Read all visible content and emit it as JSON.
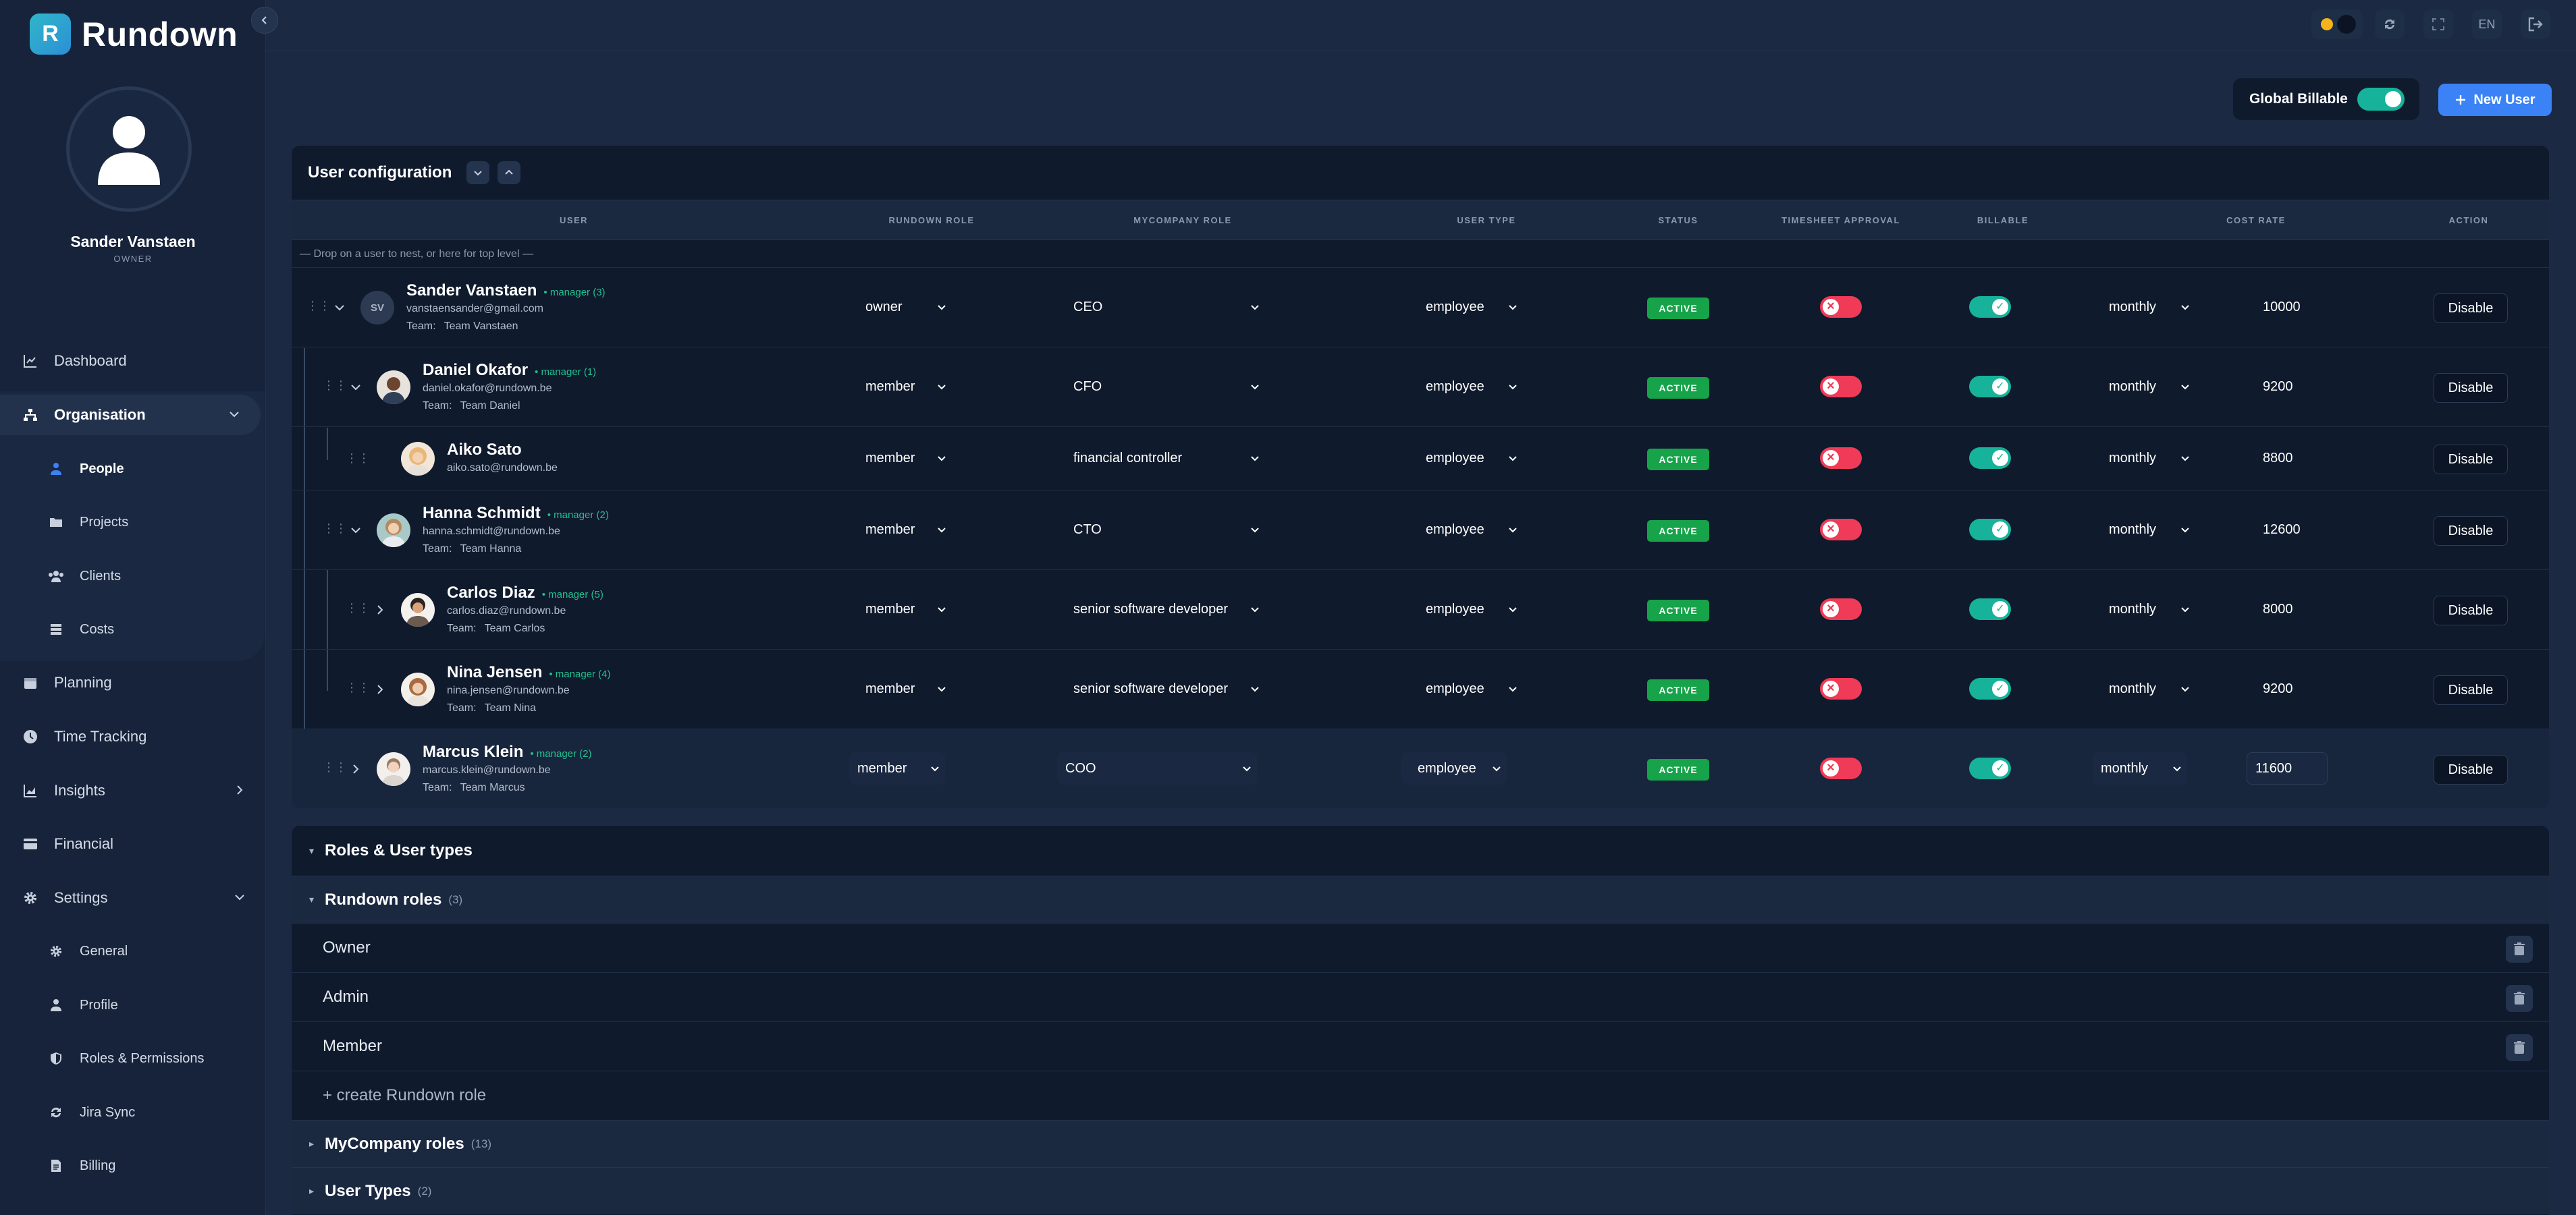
{
  "brand": {
    "logo_letter": "R",
    "name": "Rundown"
  },
  "profile": {
    "name": "Sander Vanstaen",
    "role": "OWNER"
  },
  "nav": {
    "dashboard": "Dashboard",
    "organisation": "Organisation",
    "people": "People",
    "projects": "Projects",
    "clients": "Clients",
    "costs": "Costs",
    "planning": "Planning",
    "time_tracking": "Time Tracking",
    "insights": "Insights",
    "financial": "Financial",
    "settings": "Settings",
    "general": "General",
    "profile": "Profile",
    "roles_permissions": "Roles & Permissions",
    "jira_sync": "Jira Sync",
    "billing": "Billing"
  },
  "topbar": {
    "language": "EN"
  },
  "actions": {
    "global_billable": "Global Billable",
    "new_user": "New User"
  },
  "user_config": {
    "title": "User configuration",
    "columns": {
      "user": "USER",
      "rundown_role": "RUNDOWN ROLE",
      "mycompany_role": "MYCOMPANY ROLE",
      "user_type": "USER TYPE",
      "status": "STATUS",
      "timesheet_approval": "TIMESHEET APPROVAL",
      "billable": "BILLABLE",
      "cost_rate": "COST RATE",
      "action": "ACTION"
    },
    "drop_hint": "— Drop on a user to nest, or here for top level —",
    "team_label": "Team:",
    "users": [
      {
        "name": "Sander Vanstaen",
        "manager": "• manager (3)",
        "email": "vanstaensander@gmail.com",
        "team": "Team Vanstaen",
        "initials": "SV",
        "rundown_role": "owner",
        "mycompany_role": "CEO",
        "user_type": "employee",
        "status": "ACTIVE",
        "period": "monthly",
        "cost": "10000",
        "action": "Disable"
      },
      {
        "name": "Daniel Okafor",
        "manager": "• manager (1)",
        "email": "daniel.okafor@rundown.be",
        "team": "Team Daniel",
        "rundown_role": "member",
        "mycompany_role": "CFO",
        "user_type": "employee",
        "status": "ACTIVE",
        "period": "monthly",
        "cost": "9200",
        "action": "Disable"
      },
      {
        "name": "Aiko Sato",
        "manager": "",
        "email": "aiko.sato@rundown.be",
        "team": "",
        "rundown_role": "member",
        "mycompany_role": "financial controller",
        "user_type": "employee",
        "status": "ACTIVE",
        "period": "monthly",
        "cost": "8800",
        "action": "Disable"
      },
      {
        "name": "Hanna Schmidt",
        "manager": "• manager (2)",
        "email": "hanna.schmidt@rundown.be",
        "team": "Team Hanna",
        "rundown_role": "member",
        "mycompany_role": "CTO",
        "user_type": "employee",
        "status": "ACTIVE",
        "period": "monthly",
        "cost": "12600",
        "action": "Disable"
      },
      {
        "name": "Carlos Diaz",
        "manager": "• manager (5)",
        "email": "carlos.diaz@rundown.be",
        "team": "Team Carlos",
        "rundown_role": "member",
        "mycompany_role": "senior software developer",
        "user_type": "employee",
        "status": "ACTIVE",
        "period": "monthly",
        "cost": "8000",
        "action": "Disable"
      },
      {
        "name": "Nina Jensen",
        "manager": "• manager (4)",
        "email": "nina.jensen@rundown.be",
        "team": "Team Nina",
        "rundown_role": "member",
        "mycompany_role": "senior software developer",
        "user_type": "employee",
        "status": "ACTIVE",
        "period": "monthly",
        "cost": "9200",
        "action": "Disable"
      },
      {
        "name": "Marcus Klein",
        "manager": "• manager (2)",
        "email": "marcus.klein@rundown.be",
        "team": "Team Marcus",
        "rundown_role": "member",
        "mycompany_role": "COO",
        "user_type": "employee",
        "status": "ACTIVE",
        "period": "monthly",
        "cost": "11600",
        "action": "Disable"
      }
    ]
  },
  "roles": {
    "title": "Roles & User types",
    "rundown_roles": {
      "label": "Rundown roles",
      "count": "(3)",
      "items": [
        "Owner",
        "Admin",
        "Member"
      ],
      "create": "+ create Rundown role"
    },
    "mycompany_roles": {
      "label": "MyCompany roles",
      "count": "(13)"
    },
    "user_types": {
      "label": "User Types",
      "count": "(2)"
    }
  },
  "colors": {
    "accent": "#3b82f6",
    "active": "#16a34a",
    "toggle_on": "#16b39a",
    "toggle_off": "#ef3b57"
  }
}
